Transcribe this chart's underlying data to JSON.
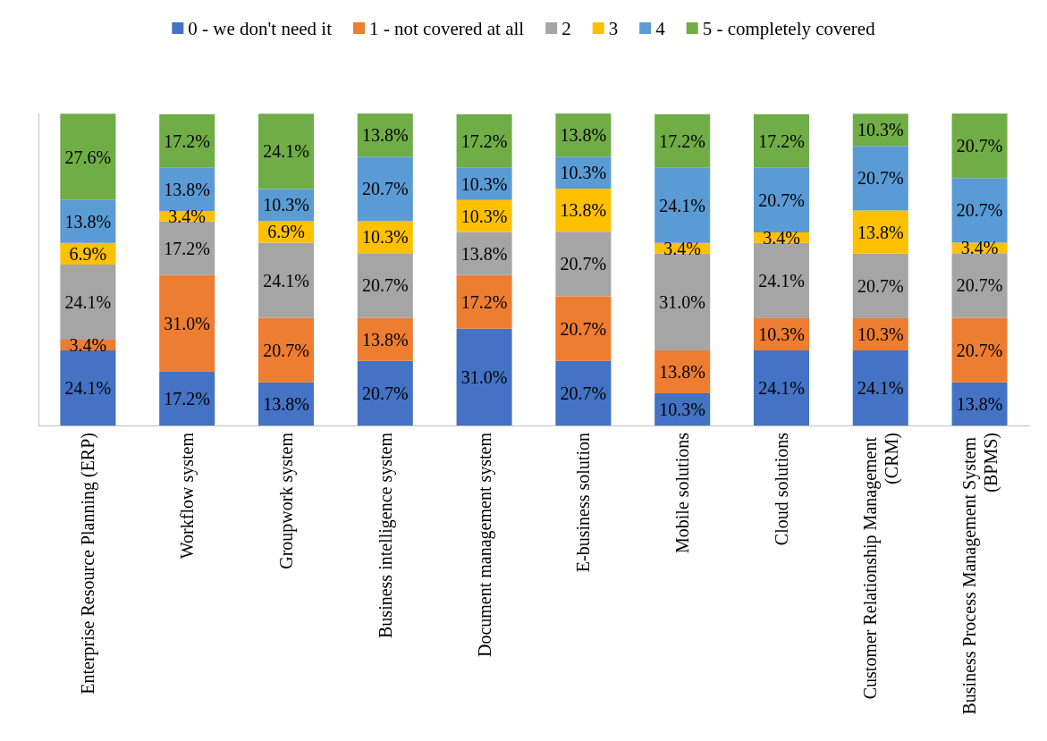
{
  "chart_data": {
    "type": "bar",
    "stacked": true,
    "legend": "top",
    "categories": [
      "Enterprise Resource Planning (ERP)",
      "Workflow system",
      "Groupwork system",
      "Business intelligence system",
      "Document management system",
      "E-business solution",
      "Mobile solutions",
      "Cloud solutions",
      "Customer Relationship Management (CRM)",
      "Business Process Management System (BPMS)"
    ],
    "series": [
      {
        "name": "0 - we don't need it",
        "color": "#4472c4",
        "values": [
          24.1,
          17.2,
          13.8,
          20.7,
          31.0,
          20.7,
          10.3,
          24.1,
          24.1,
          13.8
        ],
        "value_labels": [
          "24.1%",
          "17.2%",
          "13.8%",
          "20.7%",
          "31.0%",
          "20.7%",
          "10.3%",
          "24.1%",
          "24.1%",
          "13.8%"
        ]
      },
      {
        "name": "1 - not covered at all",
        "color": "#ed7d31",
        "values": [
          3.4,
          31.0,
          20.7,
          13.8,
          17.2,
          20.7,
          13.8,
          10.3,
          10.3,
          20.7
        ],
        "value_labels": [
          "3.4%",
          "31.0%",
          "20.7%",
          "13.8%",
          "17.2%",
          "20.7%",
          "13.8%",
          "10.3%",
          "10.3%",
          "20.7%"
        ]
      },
      {
        "name": "2",
        "color": "#a5a5a5",
        "values": [
          24.1,
          17.2,
          24.1,
          20.7,
          13.8,
          20.7,
          31.0,
          24.1,
          20.7,
          20.7
        ],
        "value_labels": [
          "24.1%",
          "17.2%",
          "24.1%",
          "20.7%",
          "13.8%",
          "20.7%",
          "31.0%",
          "24.1%",
          "20.7%",
          "20.7%"
        ]
      },
      {
        "name": "3",
        "color": "#ffc000",
        "values": [
          6.9,
          3.4,
          6.9,
          10.3,
          10.3,
          13.8,
          3.4,
          3.4,
          13.8,
          3.4
        ],
        "value_labels": [
          "6.9%",
          "3.4%",
          "6.9%",
          "10.3%",
          "10.3%",
          "13.8%",
          "3.4%",
          "3.4%",
          "13.8%",
          "3.4%"
        ]
      },
      {
        "name": "4",
        "color": "#5b9bd5",
        "values": [
          13.8,
          13.8,
          10.3,
          20.7,
          10.3,
          10.3,
          24.1,
          20.7,
          20.7,
          20.7
        ],
        "value_labels": [
          "13.8%",
          "13.8%",
          "10.3%",
          "20.7%",
          "10.3%",
          "10.3%",
          "24.1%",
          "20.7%",
          "20.7%",
          "20.7%"
        ]
      },
      {
        "name": "5 - completely covered",
        "color": "#70ad47",
        "values": [
          27.6,
          17.2,
          24.1,
          13.8,
          17.2,
          13.8,
          17.2,
          17.2,
          10.3,
          20.7
        ],
        "value_labels": [
          "27.6%",
          "17.2%",
          "24.1%",
          "13.8%",
          "17.2%",
          "13.8%",
          "17.2%",
          "17.2%",
          "10.3%",
          "20.7%"
        ]
      }
    ]
  }
}
